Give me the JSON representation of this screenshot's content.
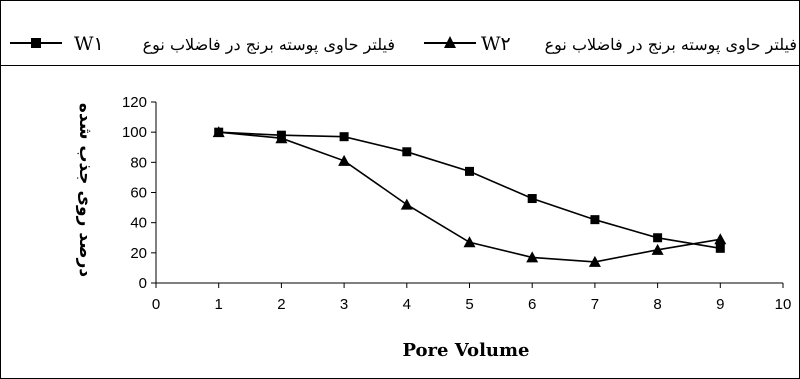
{
  "chart_data": {
    "type": "line",
    "title": "",
    "xlabel": "Pore Volume",
    "ylabel": "درصد روی جذب شده",
    "xlim": [
      0,
      10
    ],
    "ylim": [
      0,
      120
    ],
    "xticks": [
      0,
      1,
      2,
      3,
      4,
      5,
      6,
      7,
      8,
      9,
      10
    ],
    "yticks": [
      0,
      20,
      40,
      60,
      80,
      100,
      120
    ],
    "grid": false,
    "legend_position": "top",
    "series": [
      {
        "name": "فیلتر حاوی پوسته برنج در فاضلاب نوع W۱",
        "legend_tag": "W۱",
        "legend_text": "فیلتر حاوی پوسته برنج در فاضلاب نوع",
        "marker": "square",
        "color": "#000000",
        "x": [
          1,
          2,
          3,
          4,
          5,
          6,
          7,
          8,
          9
        ],
        "y": [
          100,
          98,
          97,
          87,
          74,
          56,
          42,
          30,
          23
        ]
      },
      {
        "name": "فیلتر حاوی پوسته برنج در فاضلاب نوع W۲",
        "legend_tag": "W۲",
        "legend_text": "فیلتر حاوی پوسته برنج در فاضلاب نوع",
        "marker": "triangle",
        "color": "#000000",
        "x": [
          1,
          2,
          3,
          4,
          5,
          6,
          7,
          8,
          9
        ],
        "y": [
          100,
          96,
          81,
          52,
          27,
          17,
          14,
          22,
          29
        ]
      }
    ]
  }
}
